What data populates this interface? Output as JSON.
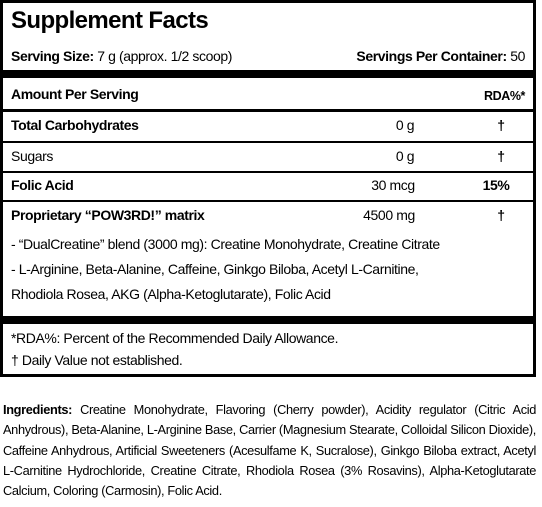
{
  "title": "Supplement Facts",
  "serving": {
    "size_label": "Serving Size:",
    "size_value": "7 g (approx. 1/2 scoop)",
    "per_container_label": "Servings Per Container:",
    "per_container_value": "50"
  },
  "header": {
    "amount_label": "Amount Per Serving",
    "rda_label": "RDA%*"
  },
  "rows": [
    {
      "name": "Total Carbohydrates",
      "amount": "0 g",
      "rda": "†"
    },
    {
      "name": "Sugars",
      "amount": "0 g",
      "rda": "†"
    },
    {
      "name": "Folic Acid",
      "amount": "30 mcg",
      "rda": "15%"
    },
    {
      "name": "Proprietary “POW3RD!” matrix",
      "amount": "4500 mg",
      "rda": "†"
    }
  ],
  "blend_lines": [
    "- “DualCreatine” blend (3000 mg): Creatine Monohydrate, Creatine Citrate",
    "- L-Arginine, Beta-Alanine, Caffeine, Ginkgo Biloba, Acetyl L-Carnitine,",
    "Rhodiola Rosea, AKG (Alpha-Ketoglutarate), Folic Acid"
  ],
  "footnotes": [
    "*RDA%: Percent of the Recommended Daily Allowance.",
    "† Daily Value not established."
  ],
  "ingredients": {
    "label": "Ingredients:",
    "text": "Creatine Monohydrate, Flavoring (Cherry powder), Acidity regulator (Citric Acid Anhydrous), Beta-Alanine, L-Arginine Base, Carrier (Magnesium Stearate, Colloidal Silicon Dioxide), Caffeine Anhydrous, Artificial Sweeteners (Acesulfame K, Sucralose), Ginkgo Biloba extract, Acetyl L-Carnitine Hydrochloride, Creatine Citrate, Rhodiola Rosea (3% Rosavins), Alpha-Ketoglutarate Calcium, Coloring (Carmosin), Folic Acid."
  }
}
